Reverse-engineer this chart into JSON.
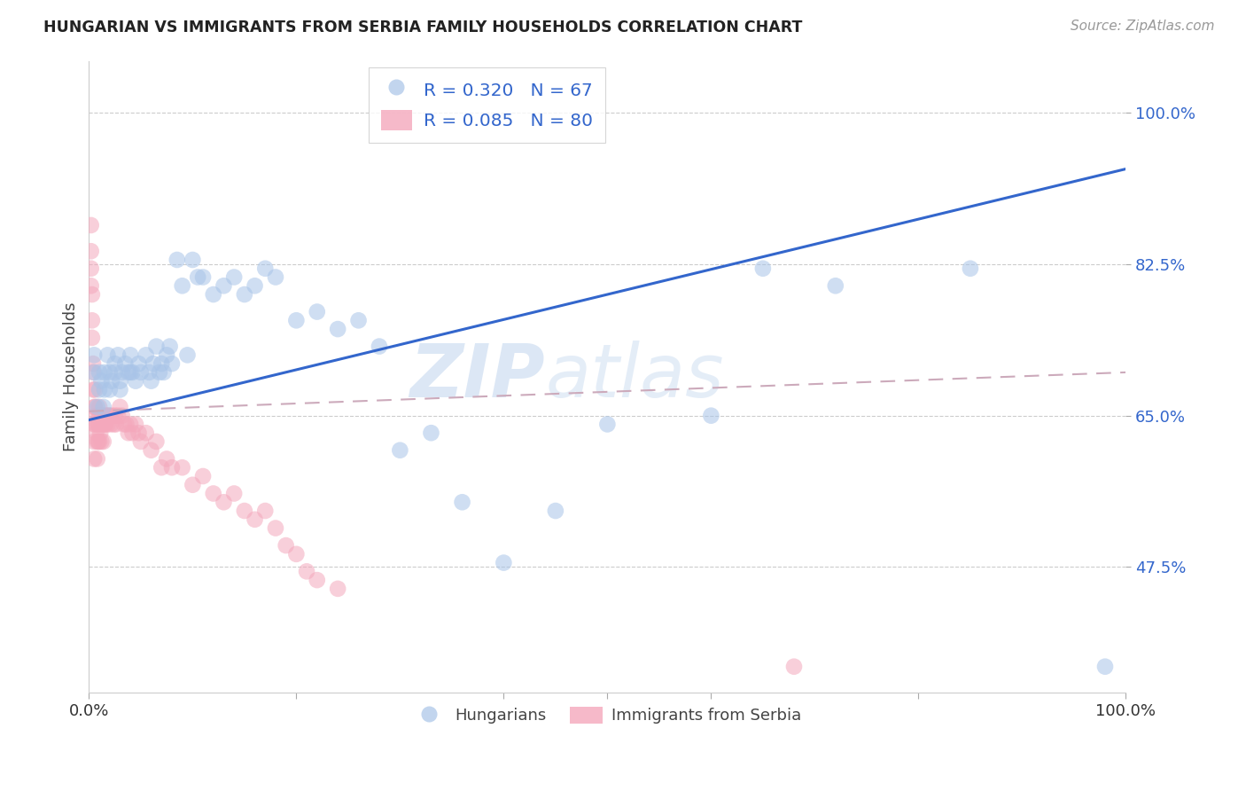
{
  "title": "HUNGARIAN VS IMMIGRANTS FROM SERBIA FAMILY HOUSEHOLDS CORRELATION CHART",
  "source": "Source: ZipAtlas.com",
  "ylabel": "Family Households",
  "y_ticks_pct": [
    47.5,
    65.0,
    82.5,
    100.0
  ],
  "y_tick_labels": [
    "47.5%",
    "65.0%",
    "82.5%",
    "100.0%"
  ],
  "x_tick_left": "0.0%",
  "x_tick_right": "100.0%",
  "xlim": [
    0.0,
    1.0
  ],
  "ylim": [
    0.33,
    1.06
  ],
  "legend_line1": "R = 0.320   N = 67",
  "legend_line2": "R = 0.085   N = 80",
  "color_hungarian": "#a8c4e8",
  "color_serbia": "#f4a8bc",
  "color_trendline_hun": "#3366cc",
  "color_trendline_ser": "#ccaabb",
  "watermark_zip": "ZIP",
  "watermark_atlas": "atlas",
  "watermark_color": "#d0e4f5",
  "hungarian_x": [
    0.005,
    0.005,
    0.008,
    0.01,
    0.01,
    0.012,
    0.014,
    0.015,
    0.015,
    0.018,
    0.02,
    0.02,
    0.022,
    0.025,
    0.025,
    0.028,
    0.03,
    0.03,
    0.032,
    0.035,
    0.038,
    0.04,
    0.04,
    0.042,
    0.045,
    0.048,
    0.05,
    0.055,
    0.058,
    0.06,
    0.062,
    0.065,
    0.068,
    0.07,
    0.072,
    0.075,
    0.078,
    0.08,
    0.085,
    0.09,
    0.095,
    0.1,
    0.105,
    0.11,
    0.12,
    0.13,
    0.14,
    0.15,
    0.16,
    0.17,
    0.18,
    0.2,
    0.22,
    0.24,
    0.26,
    0.28,
    0.3,
    0.33,
    0.36,
    0.4,
    0.45,
    0.5,
    0.6,
    0.65,
    0.72,
    0.85,
    0.98
  ],
  "hungarian_y": [
    0.7,
    0.72,
    0.66,
    0.68,
    0.7,
    0.69,
    0.66,
    0.7,
    0.68,
    0.72,
    0.68,
    0.7,
    0.69,
    0.71,
    0.7,
    0.72,
    0.69,
    0.68,
    0.7,
    0.71,
    0.7,
    0.72,
    0.7,
    0.7,
    0.69,
    0.71,
    0.7,
    0.72,
    0.7,
    0.69,
    0.71,
    0.73,
    0.7,
    0.71,
    0.7,
    0.72,
    0.73,
    0.71,
    0.83,
    0.8,
    0.72,
    0.83,
    0.81,
    0.81,
    0.79,
    0.8,
    0.81,
    0.79,
    0.8,
    0.82,
    0.81,
    0.76,
    0.77,
    0.75,
    0.76,
    0.73,
    0.61,
    0.63,
    0.55,
    0.48,
    0.54,
    0.64,
    0.65,
    0.82,
    0.8,
    0.82,
    0.36
  ],
  "serbia_x": [
    0.002,
    0.002,
    0.002,
    0.002,
    0.003,
    0.003,
    0.003,
    0.004,
    0.004,
    0.004,
    0.005,
    0.005,
    0.005,
    0.005,
    0.006,
    0.006,
    0.006,
    0.007,
    0.007,
    0.008,
    0.008,
    0.008,
    0.009,
    0.009,
    0.01,
    0.01,
    0.01,
    0.01,
    0.011,
    0.011,
    0.012,
    0.012,
    0.013,
    0.014,
    0.014,
    0.015,
    0.016,
    0.016,
    0.017,
    0.018,
    0.019,
    0.02,
    0.021,
    0.022,
    0.024,
    0.025,
    0.026,
    0.028,
    0.03,
    0.032,
    0.034,
    0.036,
    0.038,
    0.04,
    0.042,
    0.045,
    0.048,
    0.05,
    0.055,
    0.06,
    0.065,
    0.07,
    0.075,
    0.08,
    0.09,
    0.1,
    0.11,
    0.12,
    0.13,
    0.14,
    0.15,
    0.16,
    0.17,
    0.18,
    0.19,
    0.2,
    0.21,
    0.22,
    0.24,
    0.68
  ],
  "serbia_y": [
    0.87,
    0.84,
    0.82,
    0.8,
    0.79,
    0.76,
    0.74,
    0.71,
    0.7,
    0.68,
    0.66,
    0.64,
    0.62,
    0.6,
    0.68,
    0.66,
    0.64,
    0.65,
    0.63,
    0.64,
    0.62,
    0.6,
    0.64,
    0.62,
    0.66,
    0.65,
    0.64,
    0.62,
    0.65,
    0.63,
    0.64,
    0.62,
    0.65,
    0.64,
    0.62,
    0.64,
    0.65,
    0.64,
    0.65,
    0.64,
    0.65,
    0.65,
    0.64,
    0.65,
    0.64,
    0.65,
    0.64,
    0.65,
    0.66,
    0.65,
    0.64,
    0.64,
    0.63,
    0.64,
    0.63,
    0.64,
    0.63,
    0.62,
    0.63,
    0.61,
    0.62,
    0.59,
    0.6,
    0.59,
    0.59,
    0.57,
    0.58,
    0.56,
    0.55,
    0.56,
    0.54,
    0.53,
    0.54,
    0.52,
    0.5,
    0.49,
    0.47,
    0.46,
    0.45,
    0.36
  ],
  "hun_trend_x": [
    0.0,
    1.0
  ],
  "hun_trend_y": [
    0.645,
    0.935
  ],
  "ser_trend_x": [
    0.0,
    1.0
  ],
  "ser_trend_y": [
    0.655,
    0.7
  ]
}
